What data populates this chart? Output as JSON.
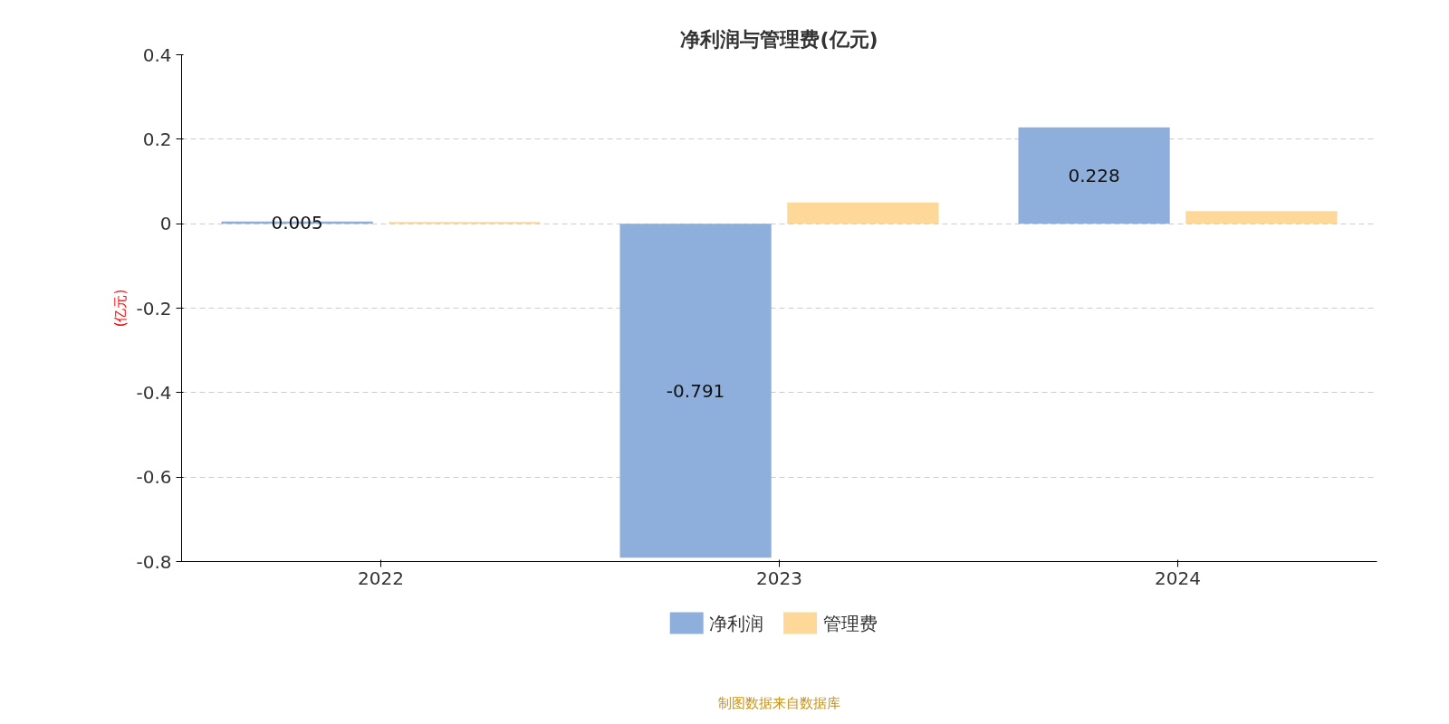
{
  "chart_data": {
    "type": "bar",
    "title": "净利润与管理费(亿元)",
    "ylabel": "(亿元)",
    "categories": [
      "2022",
      "2023",
      "2024"
    ],
    "series": [
      {
        "name": "净利润",
        "color": "#8eaedb",
        "values": [
          0.005,
          -0.791,
          0.228
        ],
        "value_labels": [
          "0.005",
          "-0.791",
          "0.228"
        ]
      },
      {
        "name": "管理费",
        "color": "#fdd898",
        "values": [
          0.004,
          0.05,
          0.03
        ]
      }
    ],
    "ylim": [
      -0.8,
      0.4
    ],
    "yticks": [
      -0.8,
      -0.6,
      -0.4,
      -0.2,
      0,
      0.2,
      0.4
    ],
    "grid": "y",
    "legend": "bottom",
    "annotations": [
      "制图数据来自数据库"
    ]
  }
}
